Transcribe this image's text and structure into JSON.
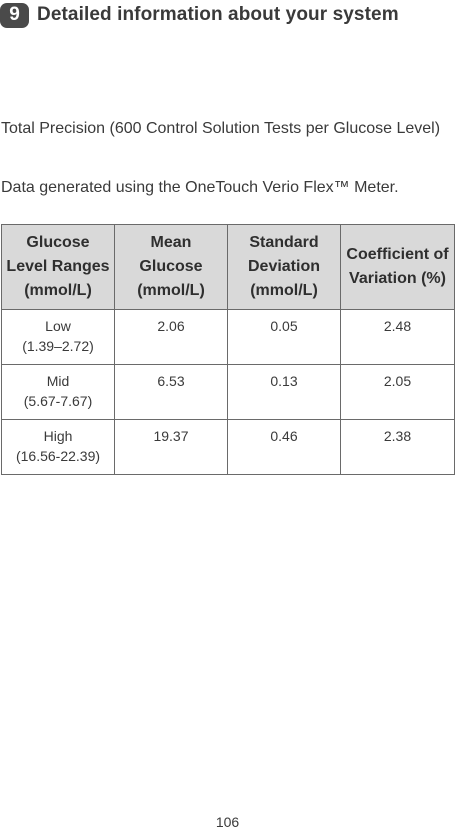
{
  "header": {
    "chapter_number": "9",
    "title": "Detailed information about your system"
  },
  "paragraphs": {
    "precision": "Total Precision (600 Control Solution Tests per Glucose Level)",
    "meter_note": "Data generated using the OneTouch Verio Flex™ Meter."
  },
  "table": {
    "headers": [
      "Glucose Level Ranges (mmol/L)",
      "Mean Glucose (mmol/L)",
      "Standard Deviation (mmol/L)",
      "Coefficient of Variation (%)"
    ],
    "rows": [
      {
        "level": "Low",
        "range": "(1.39–2.72)",
        "mean": "2.06",
        "sd": "0.05",
        "cv": "2.48"
      },
      {
        "level": "Mid",
        "range": "(5.67-7.67)",
        "mean": "6.53",
        "sd": "0.13",
        "cv": "2.05"
      },
      {
        "level": "High",
        "range": "(16.56-22.39)",
        "mean": "19.37",
        "sd": "0.46",
        "cv": "2.38"
      }
    ]
  },
  "footer": {
    "page_number": "106"
  }
}
